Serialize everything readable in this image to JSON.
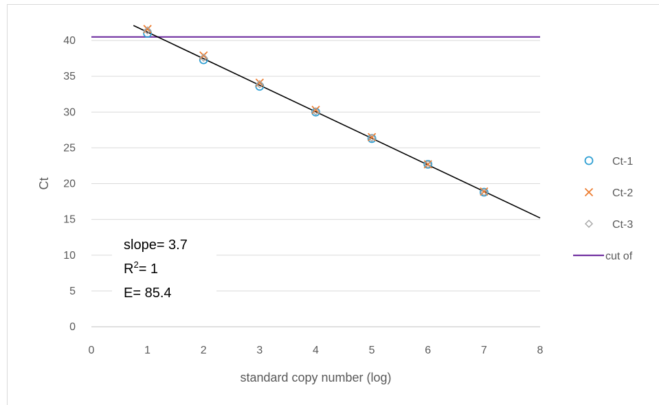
{
  "chart_data": {
    "type": "scatter",
    "xlabel": "standard copy number (log)",
    "ylabel": "Ct",
    "xlim": [
      0,
      8
    ],
    "ylim": [
      0,
      40
    ],
    "x_ticks": [
      "0",
      "1",
      "2",
      "3",
      "4",
      "5",
      "6",
      "7",
      "8"
    ],
    "y_ticks": [
      "0",
      "5",
      "10",
      "15",
      "20",
      "25",
      "30",
      "35",
      "40"
    ],
    "grid": true,
    "legend_position": "right",
    "series": [
      {
        "name": "Ct-1",
        "marker": "circle",
        "color": "#2e9fd3",
        "x": [
          1,
          2,
          3,
          4,
          5,
          6,
          7
        ],
        "y": [
          41.0,
          37.3,
          33.6,
          30.0,
          26.3,
          22.7,
          18.8
        ]
      },
      {
        "name": "Ct-2",
        "marker": "x",
        "color": "#ed7d31",
        "x": [
          1,
          2,
          3,
          4,
          5,
          6,
          7
        ],
        "y": [
          41.6,
          37.9,
          34.1,
          30.3,
          26.5,
          22.7,
          18.9
        ]
      },
      {
        "name": "Ct-3",
        "marker": "diamond",
        "color": "#a5a5a5",
        "x": [
          1,
          2,
          3,
          4,
          5,
          6,
          7
        ],
        "y": [
          41.4,
          37.6,
          33.9,
          30.1,
          26.4,
          22.7,
          18.8
        ]
      }
    ],
    "cutoff": {
      "name": "cut of",
      "y": 40.5,
      "color": "#7030a0"
    },
    "trendline": {
      "color": "#000000",
      "x": [
        0.75,
        8
      ],
      "y": [
        42.1,
        15.2
      ]
    },
    "annotation": {
      "slope_text": "slope= 3.7",
      "r2_prefix": "R",
      "r2_sup": "2",
      "r2_suffix": "= 1",
      "e_text": "E= 85.4"
    }
  }
}
